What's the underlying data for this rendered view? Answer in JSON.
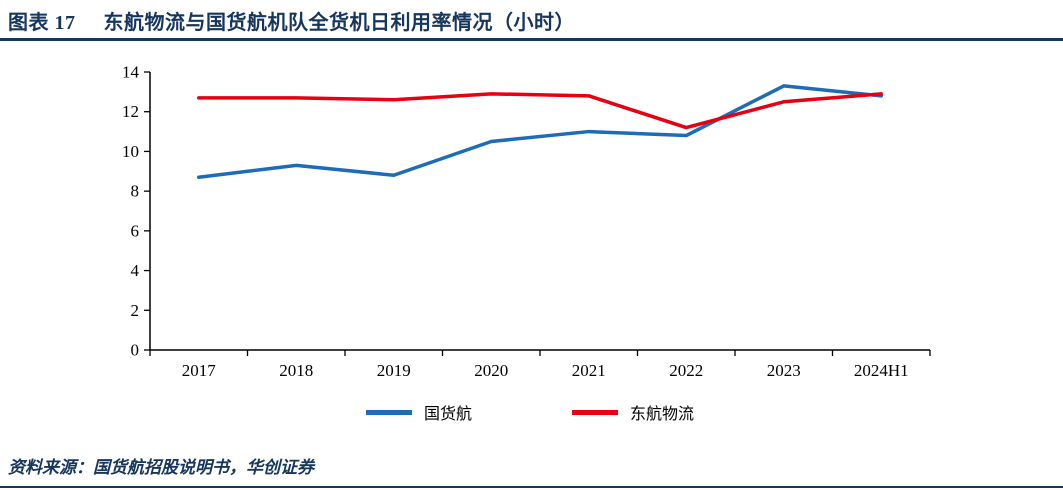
{
  "header": {
    "label": "图表 17",
    "title": "东航物流与国货航机队全货机日利用率情况（小时）"
  },
  "chart_data": {
    "type": "line",
    "title": "东航物流与国货航机队全货机日利用率情况（小时）",
    "categories": [
      "2017",
      "2018",
      "2019",
      "2020",
      "2021",
      "2022",
      "2023",
      "2024H1"
    ],
    "series": [
      {
        "name": "国货航",
        "color": "#1E6BB8",
        "values": [
          8.7,
          9.3,
          8.8,
          10.5,
          11.0,
          10.8,
          13.3,
          12.8
        ]
      },
      {
        "name": "东航物流",
        "color": "#E60012",
        "values": [
          12.7,
          12.7,
          12.6,
          12.9,
          12.8,
          11.2,
          12.5,
          12.9
        ]
      }
    ],
    "xlabel": "",
    "ylabel": "",
    "ylim": [
      0,
      14
    ],
    "ytick_step": 2,
    "grid": false,
    "legend_position": "bottom"
  },
  "footer": {
    "source": "资料来源：国货航招股说明书，华创证券"
  },
  "colors": {
    "accent_navy": "#17365D",
    "axis": "#000000"
  }
}
